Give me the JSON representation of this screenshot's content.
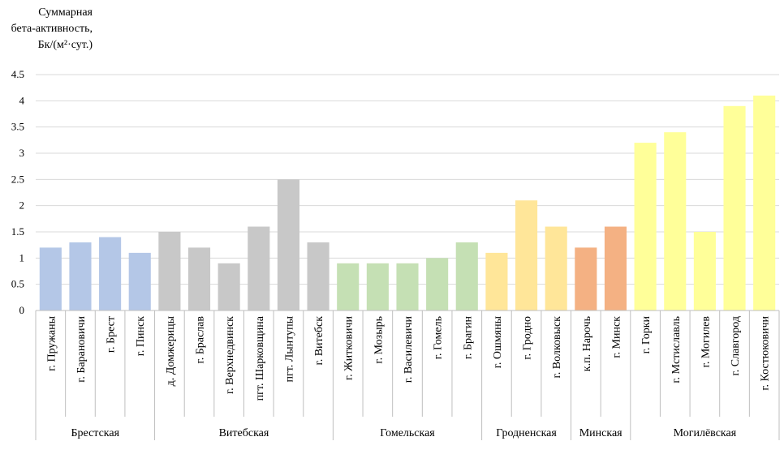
{
  "chart_data": {
    "type": "bar",
    "ylabel_lines": [
      "Суммарная",
      "бета-активность,",
      "Бк/(м²·сут.)"
    ],
    "ylim": [
      0,
      4.5
    ],
    "yticks": [
      "0",
      "0.5",
      "1",
      "1.5",
      "2",
      "2.5",
      "3",
      "3.5",
      "4",
      "4.5"
    ],
    "grid": true,
    "groups": [
      {
        "name": "Брестская",
        "color": "#b4c7e7",
        "count": 4
      },
      {
        "name": "Витебская",
        "color": "#c8c8c8",
        "count": 6
      },
      {
        "name": "Гомельская",
        "color": "#c5e0b4",
        "count": 5
      },
      {
        "name": "Гродненская",
        "color": "#ffe699",
        "count": 3
      },
      {
        "name": "Минская",
        "color": "#f4b183",
        "count": 2
      },
      {
        "name": "Могилёвская",
        "color": "#ffff99",
        "count": 5
      }
    ],
    "categories": [
      "г. Пружаны",
      "г. Барановичи",
      "г. Брест",
      "г. Пинск",
      "д. Домжерицы",
      "г. Браслав",
      "г. Верхнедвинск",
      "пгт. Шарковщина",
      "пгт. Лынтупы",
      "г. Витебск",
      "г. Житковичи",
      "г. Мозырь",
      "г. Василевичи",
      "г. Гомель",
      "г. Брагин",
      "г. Ошмяны",
      "г. Гродно",
      "г. Волковыск",
      "к.п. Нарочь",
      "г. Минск",
      "г. Горки",
      "г. Мстиславль",
      "г. Могилев",
      "г. Славгород",
      "г. Костюковичи"
    ],
    "values": [
      1.2,
      1.3,
      1.4,
      1.1,
      1.5,
      1.2,
      0.9,
      1.6,
      2.5,
      1.3,
      0.9,
      0.9,
      0.9,
      1.0,
      1.3,
      1.1,
      2.1,
      1.6,
      1.2,
      1.6,
      3.2,
      3.4,
      1.5,
      3.9,
      4.1
    ]
  }
}
